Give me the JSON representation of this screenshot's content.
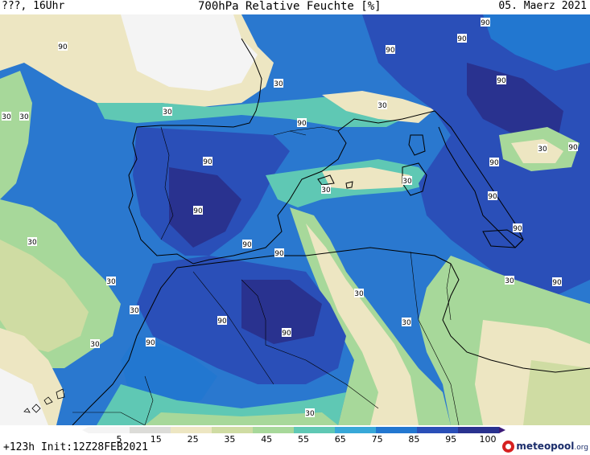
{
  "header": {
    "left": "???, 16Uhr",
    "title": "700hPa Relative Feuchte [%]",
    "date": "05. Maerz 2021"
  },
  "footer": {
    "run": "+123h  Init:12Z28FEB2021"
  },
  "logo": {
    "brand": "meteopool",
    "suffix": ".org"
  },
  "colorbar": {
    "ticks": [
      "5",
      "15",
      "25",
      "35",
      "45",
      "55",
      "65",
      "75",
      "85",
      "95",
      "100"
    ],
    "colors": [
      "#f4f4f4",
      "#dcdcd8",
      "#ede6c2",
      "#cfdca3",
      "#a7d89a",
      "#5fc8b4",
      "#38a8d8",
      "#2277d0",
      "#2a4fb8",
      "#29328f",
      "#3b1a78"
    ]
  },
  "map": {
    "contour_labels": [
      "90",
      "90",
      "90",
      "90",
      "90",
      "90",
      "90",
      "90",
      "90",
      "90",
      "90",
      "90",
      "90",
      "90",
      "90",
      "90",
      "90",
      "90",
      "30",
      "30",
      "30",
      "30",
      "30",
      "30",
      "30",
      "30",
      "30",
      "30",
      "30",
      "30",
      "30",
      "30",
      "30",
      "30"
    ]
  }
}
